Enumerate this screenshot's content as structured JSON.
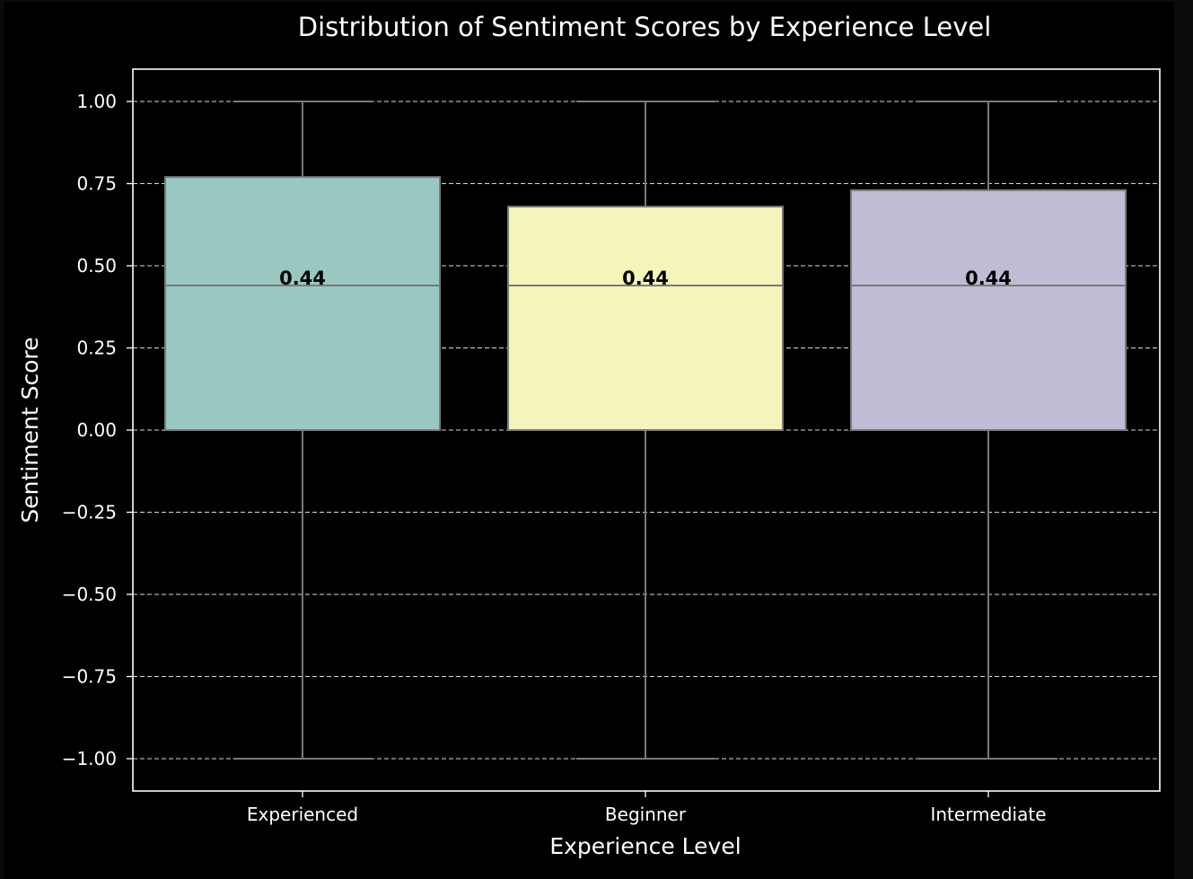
{
  "chart_data": {
    "type": "box",
    "title": "Distribution of Sentiment Scores by Experience Level",
    "xlabel": "Experience Level",
    "ylabel": "Sentiment Score",
    "ylim": [
      -1.1,
      1.1
    ],
    "yticks": [
      1.0,
      0.75,
      0.5,
      0.25,
      0.0,
      -0.25,
      -0.5,
      -0.75,
      -1.0
    ],
    "ytick_labels": [
      "1.00",
      "0.75",
      "0.50",
      "0.25",
      "0.00",
      "−0.25",
      "−0.50",
      "−0.75",
      "−1.00"
    ],
    "grid": true,
    "categories": [
      "Experienced",
      "Beginner",
      "Intermediate"
    ],
    "boxes": [
      {
        "name": "Experienced",
        "whisker_low": -1.0,
        "q1": 0.0,
        "median": 0.44,
        "q3": 0.77,
        "whisker_high": 1.0,
        "median_label": "0.44",
        "color": "#98c8c0"
      },
      {
        "name": "Beginner",
        "whisker_low": -1.0,
        "q1": 0.0,
        "median": 0.44,
        "q3": 0.68,
        "whisker_high": 1.0,
        "median_label": "0.44",
        "color": "#f5f4bb"
      },
      {
        "name": "Intermediate",
        "whisker_low": -1.0,
        "q1": 0.0,
        "median": 0.44,
        "q3": 0.73,
        "whisker_high": 1.0,
        "median_label": "0.44",
        "color": "#c1bbd6"
      }
    ],
    "colors": {
      "background": "#000000",
      "axes_edge": "#ffffff",
      "text": "#ffffff",
      "grid": "#ffffff",
      "box_edge": "#7a7a7a",
      "label": "#000000"
    }
  }
}
